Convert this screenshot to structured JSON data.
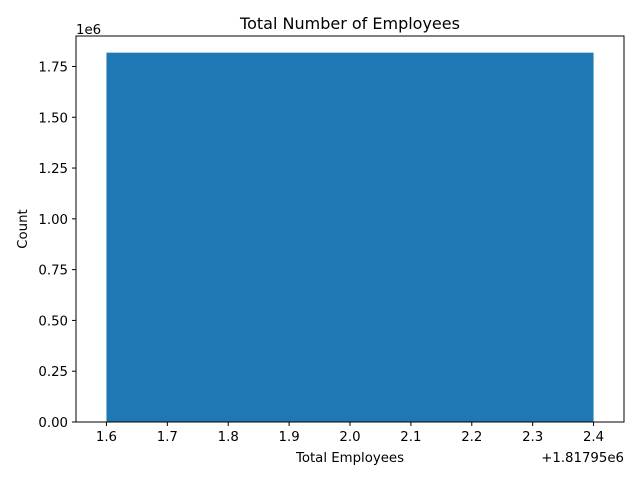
{
  "chart_data": {
    "type": "bar",
    "title": "Total Number of Employees",
    "xlabel": "Total Employees",
    "ylabel": "Count",
    "x_offset_text": "+1.81795e6",
    "y_scale_text": "1e6",
    "bar": {
      "x_start": 1.6,
      "x_end": 2.4,
      "value": 1.818
    },
    "xlim": [
      1.55,
      2.45
    ],
    "ylim": [
      0,
      1.9
    ],
    "x_ticks": [
      {
        "value": 1.6,
        "label": "1.6"
      },
      {
        "value": 1.7,
        "label": "1.7"
      },
      {
        "value": 1.8,
        "label": "1.8"
      },
      {
        "value": 1.9,
        "label": "1.9"
      },
      {
        "value": 2.0,
        "label": "2.0"
      },
      {
        "value": 2.1,
        "label": "2.1"
      },
      {
        "value": 2.2,
        "label": "2.2"
      },
      {
        "value": 2.3,
        "label": "2.3"
      },
      {
        "value": 2.4,
        "label": "2.4"
      }
    ],
    "y_ticks": [
      {
        "value": 0.0,
        "label": "0.00"
      },
      {
        "value": 0.25,
        "label": "0.25"
      },
      {
        "value": 0.5,
        "label": "0.50"
      },
      {
        "value": 0.75,
        "label": "0.75"
      },
      {
        "value": 1.0,
        "label": "1.00"
      },
      {
        "value": 1.25,
        "label": "1.25"
      },
      {
        "value": 1.5,
        "label": "1.50"
      },
      {
        "value": 1.75,
        "label": "1.75"
      }
    ],
    "bar_color": "#1f77b4",
    "grid": false,
    "legend": "none"
  }
}
